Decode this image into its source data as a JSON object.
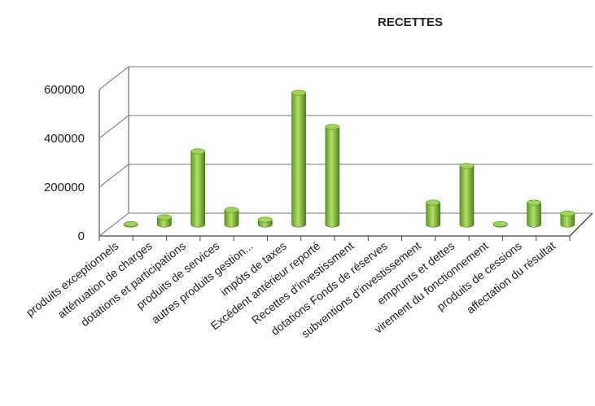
{
  "chart_data": {
    "type": "bar",
    "title": "RECETTES",
    "xlabel": "",
    "ylabel": "",
    "ylim": [
      0,
      600000
    ],
    "yticks": [
      0,
      200000,
      400000,
      600000
    ],
    "grid": true,
    "legend": "none",
    "bar_color": "#8cc63f",
    "categories": [
      "produits exceptionnels",
      "atténuation de charges",
      "dotations et participations",
      "produits de services",
      "autres produits gestion...",
      "impôts de taxes",
      "Excédent antérieur reporté",
      "Recettes d'investissment",
      "dotations Fonds de réserves",
      "subventions d'investissement",
      "emprunts et dettes",
      "virement du fonctionnement",
      "produits de cessions",
      "affectation du résultat"
    ],
    "values": [
      2000,
      30000,
      300000,
      60000,
      20000,
      540000,
      400000,
      0,
      0,
      90000,
      240000,
      2000,
      90000,
      45000
    ]
  }
}
